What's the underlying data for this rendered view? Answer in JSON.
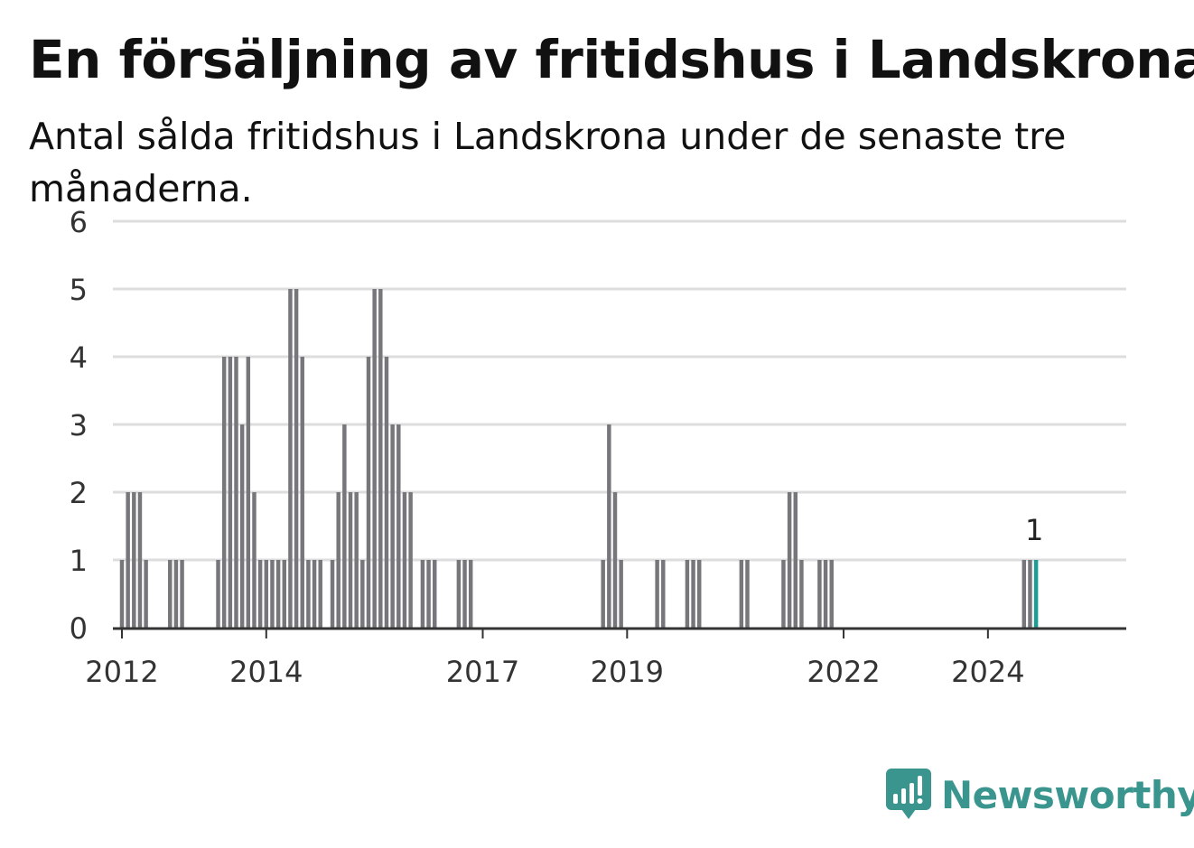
{
  "header": {
    "title": "En försäljning av fritidshus i Landskrona",
    "subtitle": "Antal sålda fritidshus i Landskrona under de senaste tre månaderna."
  },
  "branding": {
    "logo_text": "Newsworthy",
    "logo_icon": "chart-bubble-icon",
    "color": "#3a958f"
  },
  "colors": {
    "bar": "#77767b",
    "highlight": "#1a9e96",
    "grid": "#dddddd",
    "axis": "#333333"
  },
  "chart_data": {
    "type": "bar",
    "title": "En försäljning av fritidshus i Landskrona",
    "subtitle": "Antal sålda fritidshus i Landskrona under de senaste tre månaderna.",
    "ylim": [
      0,
      6
    ],
    "yticks": [
      0,
      1,
      2,
      3,
      4,
      5,
      6
    ],
    "grid": true,
    "x_start": "2011-12",
    "x_end": "2025-12",
    "x_ticks": [
      {
        "label": "2012",
        "x": "2012-01"
      },
      {
        "label": "2014",
        "x": "2014-01"
      },
      {
        "label": "2017",
        "x": "2017-01"
      },
      {
        "label": "2019",
        "x": "2019-01"
      },
      {
        "label": "2022",
        "x": "2022-01"
      },
      {
        "label": "2024",
        "x": "2024-01"
      }
    ],
    "series": [
      {
        "points": [
          [
            "2012-01",
            1
          ],
          [
            "2012-02",
            2
          ],
          [
            "2012-03",
            2
          ],
          [
            "2012-04",
            2
          ],
          [
            "2012-05",
            1
          ],
          [
            "2012-09",
            1
          ],
          [
            "2012-10",
            1
          ],
          [
            "2012-11",
            1
          ],
          [
            "2013-05",
            1
          ],
          [
            "2013-06",
            4
          ],
          [
            "2013-07",
            4
          ],
          [
            "2013-08",
            4
          ],
          [
            "2013-09",
            3
          ],
          [
            "2013-10",
            4
          ],
          [
            "2013-11",
            2
          ],
          [
            "2013-12",
            1
          ],
          [
            "2014-01",
            1
          ],
          [
            "2014-02",
            1
          ],
          [
            "2014-03",
            1
          ],
          [
            "2014-04",
            1
          ],
          [
            "2014-05",
            5
          ],
          [
            "2014-06",
            5
          ],
          [
            "2014-07",
            4
          ],
          [
            "2014-08",
            1
          ],
          [
            "2014-09",
            1
          ],
          [
            "2014-10",
            1
          ],
          [
            "2014-12",
            1
          ],
          [
            "2015-01",
            2
          ],
          [
            "2015-02",
            3
          ],
          [
            "2015-03",
            2
          ],
          [
            "2015-04",
            2
          ],
          [
            "2015-05",
            1
          ],
          [
            "2015-06",
            4
          ],
          [
            "2015-07",
            5
          ],
          [
            "2015-08",
            5
          ],
          [
            "2015-09",
            4
          ],
          [
            "2015-10",
            3
          ],
          [
            "2015-11",
            3
          ],
          [
            "2015-12",
            2
          ],
          [
            "2016-01",
            2
          ],
          [
            "2016-03",
            1
          ],
          [
            "2016-04",
            1
          ],
          [
            "2016-05",
            1
          ],
          [
            "2016-09",
            1
          ],
          [
            "2016-10",
            1
          ],
          [
            "2016-11",
            1
          ],
          [
            "2018-09",
            1
          ],
          [
            "2018-10",
            3
          ],
          [
            "2018-11",
            2
          ],
          [
            "2018-12",
            1
          ],
          [
            "2019-06",
            1
          ],
          [
            "2019-07",
            1
          ],
          [
            "2019-11",
            1
          ],
          [
            "2019-12",
            1
          ],
          [
            "2020-01",
            1
          ],
          [
            "2020-08",
            1
          ],
          [
            "2020-09",
            1
          ],
          [
            "2021-03",
            1
          ],
          [
            "2021-04",
            2
          ],
          [
            "2021-05",
            2
          ],
          [
            "2021-06",
            1
          ],
          [
            "2021-09",
            1
          ],
          [
            "2021-10",
            1
          ],
          [
            "2021-11",
            1
          ],
          [
            "2024-07",
            1
          ],
          [
            "2024-08",
            1
          ],
          [
            "2024-09",
            1
          ]
        ]
      }
    ],
    "highlight": {
      "x": "2024-09",
      "label": "1"
    }
  }
}
